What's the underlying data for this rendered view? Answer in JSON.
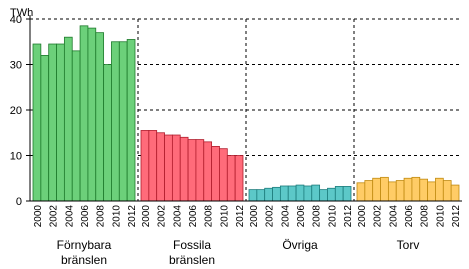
{
  "chart_data": {
    "type": "bar",
    "unit": "TWh",
    "categories": [
      "2000",
      null,
      "2002",
      null,
      "2004",
      null,
      "2006",
      null,
      "2008",
      null,
      "2010",
      null,
      "2012"
    ],
    "series": [
      {
        "name": [
          "Förnybara",
          "bränslen"
        ],
        "color": "#6cd07a",
        "edge": "#1e7a2c",
        "values": [
          34.5,
          32,
          34.5,
          34.5,
          36,
          33,
          38.5,
          38,
          37,
          30,
          35,
          35,
          35.5
        ]
      },
      {
        "name": [
          "Fossila",
          "bränslen"
        ],
        "color": "#ff6b7a",
        "edge": "#b01c2c",
        "values": [
          15.5,
          15.5,
          15,
          14.5,
          14.5,
          14,
          13.5,
          13.5,
          13,
          12,
          11.5,
          10,
          10
        ]
      },
      {
        "name": [
          "Övriga"
        ],
        "color": "#5cc8c8",
        "edge": "#1c7c7c",
        "values": [
          2.5,
          2.5,
          2.8,
          3,
          3.3,
          3.3,
          3.5,
          3.3,
          3.5,
          2.5,
          2.8,
          3.2,
          3.2
        ]
      },
      {
        "name": [
          "Torv"
        ],
        "color": "#ffcc66",
        "edge": "#c08a10",
        "values": [
          4,
          4.5,
          5,
          5.2,
          4.2,
          4.5,
          5,
          5.2,
          4.8,
          4.2,
          5,
          4.5,
          3.5
        ]
      }
    ],
    "ylim": [
      0,
      40
    ],
    "yticks": [
      0,
      10,
      20,
      30,
      40
    ],
    "grid": true
  }
}
